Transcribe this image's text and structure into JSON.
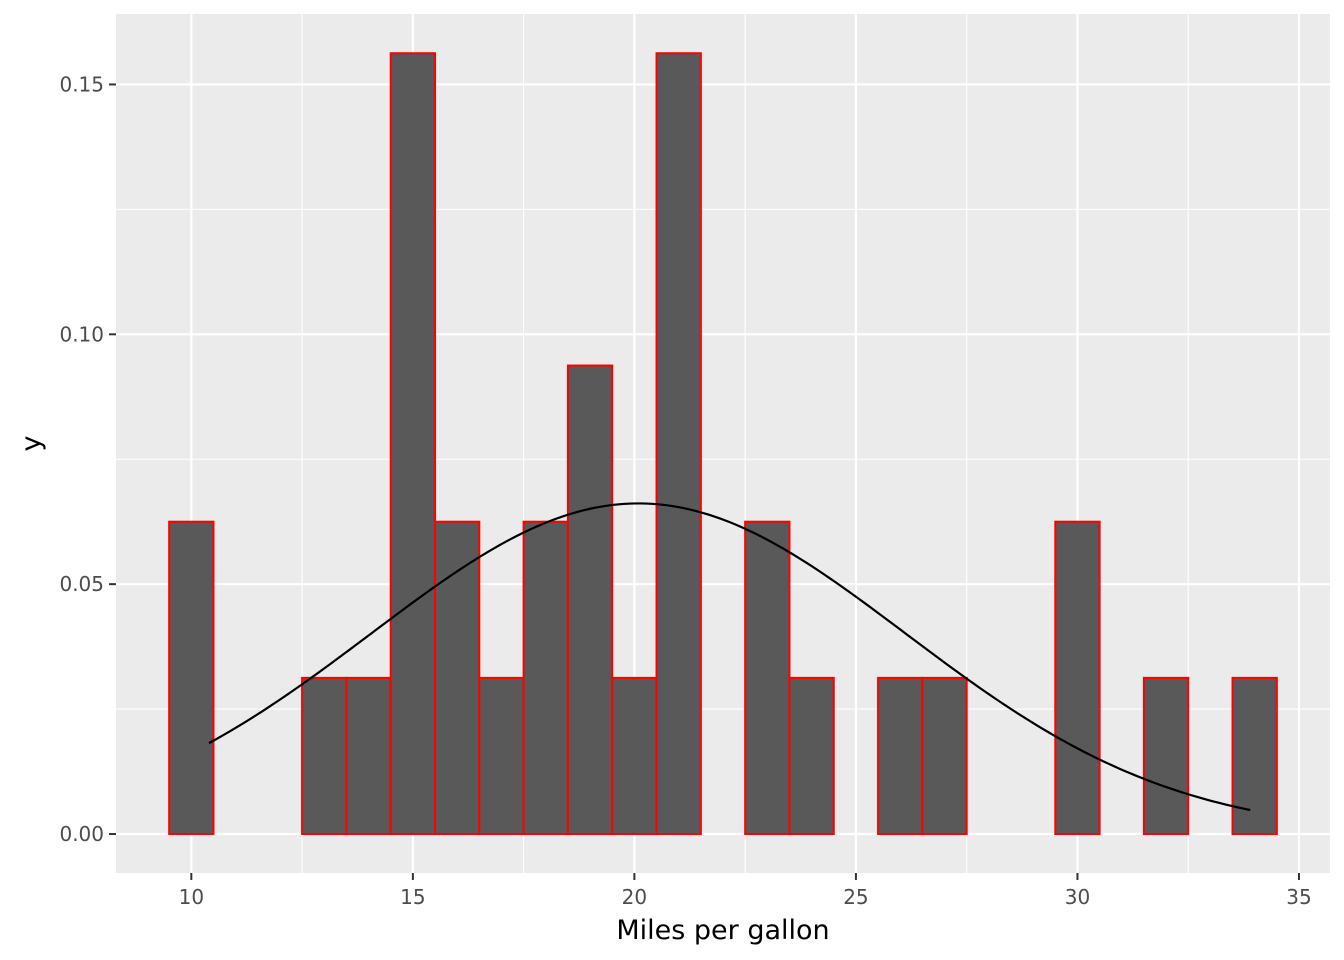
{
  "chart_data": {
    "type": "bar",
    "subtype": "histogram with density curve",
    "title": "",
    "xlabel": "Miles per gallon",
    "ylabel": "y",
    "xlim": [
      8.3,
      35.7
    ],
    "ylim": [
      -0.0078,
      0.1641
    ],
    "x_ticks": [
      10,
      15,
      20,
      25,
      30,
      35
    ],
    "y_ticks": [
      0.0,
      0.05,
      0.1,
      0.15
    ],
    "x_tick_labels": [
      "10",
      "15",
      "20",
      "25",
      "30",
      "35"
    ],
    "y_tick_labels": [
      "0.00",
      "0.05",
      "0.10",
      "0.15"
    ],
    "grid": true,
    "bin_width": 1,
    "bins": {
      "centers": [
        10,
        11,
        12,
        13,
        14,
        15,
        16,
        17,
        18,
        19,
        20,
        21,
        22,
        23,
        24,
        25,
        26,
        27,
        28,
        29,
        30,
        31,
        32,
        33,
        34
      ],
      "density": [
        0.0625,
        0,
        0,
        0.03125,
        0.03125,
        0.15625,
        0.0625,
        0.03125,
        0.0625,
        0.09375,
        0.03125,
        0.15625,
        0,
        0.0625,
        0.03125,
        0,
        0.03125,
        0.03125,
        0,
        0,
        0.0625,
        0,
        0.03125,
        0,
        0.03125
      ]
    },
    "density_curve": {
      "kind": "normal",
      "mean": 20.09,
      "sd": 6.03,
      "x_range": [
        10.4,
        33.9
      ]
    },
    "colors": {
      "panel_background": "#ebebeb",
      "grid_line": "#ffffff",
      "bar_fill": "#595959",
      "bar_outline": "#ff0000",
      "curve": "#000000"
    }
  }
}
